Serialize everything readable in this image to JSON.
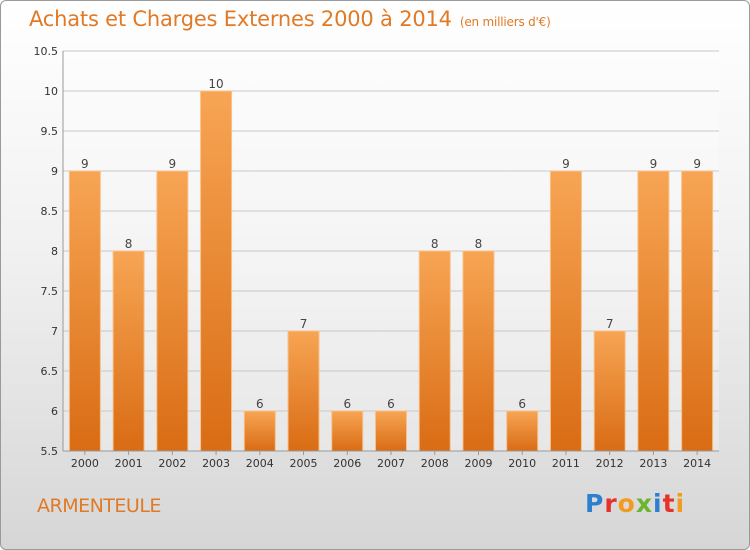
{
  "header": {
    "title": "Achats et Charges Externes 2000 à 2014",
    "unit": "(en milliers d'€)"
  },
  "footer": {
    "commune": "ARMENTEULE",
    "logo": "Proxiti"
  },
  "colors": {
    "bar_top": "#f7a554",
    "bar_bottom": "#d96c14",
    "title": "#e07a26"
  },
  "chart_data": {
    "type": "bar",
    "categories": [
      "2000",
      "2001",
      "2002",
      "2003",
      "2004",
      "2005",
      "2006",
      "2007",
      "2008",
      "2009",
      "2010",
      "2011",
      "2012",
      "2013",
      "2014"
    ],
    "values": [
      9,
      8,
      9,
      10,
      6,
      7,
      6,
      6,
      8,
      8,
      6,
      9,
      7,
      9,
      9
    ],
    "ylim": [
      5.5,
      10.5
    ],
    "yticks": [
      "5.5",
      "6",
      "6.5",
      "7",
      "7.5",
      "8",
      "8.5",
      "9",
      "9.5",
      "10",
      "10.5"
    ],
    "grid": true
  }
}
